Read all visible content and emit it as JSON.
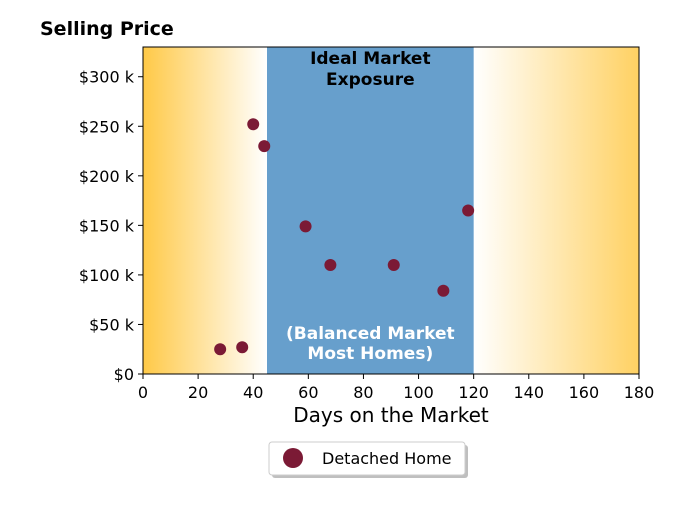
{
  "chart_data": {
    "type": "scatter",
    "title": "Selling Price",
    "xlabel": "Days on the Market",
    "ylabel": "",
    "xlim": [
      0,
      180
    ],
    "ylim": [
      0,
      330000
    ],
    "x_ticks": [
      0,
      20,
      40,
      60,
      80,
      100,
      120,
      140,
      160,
      180
    ],
    "x_tick_labels": [
      "0",
      "20",
      "40",
      "60",
      "80",
      "100",
      "120",
      "140",
      "160",
      "180"
    ],
    "y_ticks": [
      0,
      50000,
      100000,
      150000,
      200000,
      250000,
      300000
    ],
    "y_tick_labels": [
      "$0",
      "$50 k",
      "$100 k",
      "$150 k",
      "$200 k",
      "$250 k",
      "$300 k"
    ],
    "series": [
      {
        "name": "Detached Home",
        "color": "#7b1a35",
        "points": [
          {
            "x": 28,
            "y": 25000
          },
          {
            "x": 36,
            "y": 27000
          },
          {
            "x": 40,
            "y": 252000
          },
          {
            "x": 44,
            "y": 230000
          },
          {
            "x": 59,
            "y": 149000
          },
          {
            "x": 68,
            "y": 110000
          },
          {
            "x": 91,
            "y": 110000
          },
          {
            "x": 109,
            "y": 84000
          },
          {
            "x": 118,
            "y": 165000
          }
        ]
      }
    ],
    "highlight_band": {
      "x_range": [
        45,
        120
      ],
      "color": "#679fcc",
      "label_top": [
        "Ideal Market",
        "Exposure"
      ],
      "label_bottom": [
        "(Balanced Market",
        "Most Homes)"
      ]
    },
    "edge_gradient_color": "#ffc947",
    "legend": {
      "placement": "below",
      "label": "Detached Home"
    },
    "grid": false
  }
}
